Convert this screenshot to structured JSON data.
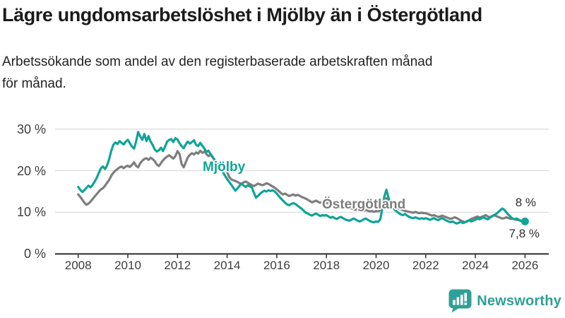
{
  "header": {
    "title": "Lägre ungdomsarbetslöshet i Mjölby än i Östergötland",
    "subtitle_lines": [
      "Arbetssökande som andel av den registerbaserade arbetskraften månad",
      "för månad."
    ]
  },
  "chart_data": {
    "type": "line",
    "title": "Lägre ungdomsarbetslöshet i Mjölby än i Östergötland",
    "subtitle": "Arbetssökande som andel av den registerbaserade arbetskraften månad för månad.",
    "x_unit": "month",
    "x_start": 2008,
    "x_end": 2026,
    "points_per_year": 12,
    "x_ticks": [
      "2008",
      "2010",
      "2012",
      "2014",
      "2016",
      "2018",
      "2020",
      "2022",
      "2024",
      "2026"
    ],
    "y_ticks": [
      {
        "value": 0,
        "label": "0 %"
      },
      {
        "value": 10,
        "label": "10 %"
      },
      {
        "value": 20,
        "label": "20 %"
      },
      {
        "value": 30,
        "label": "30 %"
      }
    ],
    "ylim": [
      0,
      31
    ],
    "grid": "horizontal",
    "legend": "inline-labels",
    "series": [
      {
        "id": "mjolby",
        "name": "Mjölby",
        "color": "#0fa497",
        "end_label": "7,8 %",
        "end_value": 7.8,
        "end_dot": true,
        "values": [
          16.1,
          15.4,
          14.9,
          15.3,
          15.9,
          16.4,
          16.0,
          16.6,
          17.4,
          18.3,
          19.5,
          20.6,
          21.0,
          20.4,
          21.3,
          22.8,
          24.8,
          26.2,
          26.8,
          26.4,
          27.1,
          26.7,
          26.3,
          27.0,
          27.4,
          26.6,
          25.8,
          25.3,
          27.0,
          29.3,
          28.2,
          27.4,
          28.8,
          27.1,
          28.3,
          27.0,
          26.2,
          25.1,
          24.6,
          24.9,
          25.5,
          24.7,
          25.8,
          27.0,
          27.4,
          27.6,
          26.9,
          27.8,
          27.5,
          26.6,
          25.9,
          25.4,
          26.3,
          27.0,
          26.5,
          26.9,
          27.3,
          26.2,
          25.9,
          26.7,
          26.0,
          25.3,
          24.5,
          24.8,
          24.0,
          23.3,
          22.6,
          21.9,
          21.2,
          20.4,
          19.6,
          18.8,
          18.0,
          17.3,
          16.6,
          15.9,
          15.2,
          15.7,
          16.4,
          16.9,
          16.4,
          16.1,
          16.5,
          16.2,
          15.9,
          14.6,
          13.5,
          14.0,
          14.5,
          14.9,
          15.2,
          15.0,
          15.3,
          15.1,
          15.3,
          15.0,
          14.5,
          13.9,
          13.3,
          12.8,
          12.3,
          11.9,
          11.7,
          12.0,
          12.2,
          12.0,
          11.6,
          11.2,
          10.9,
          10.4,
          9.9,
          9.7,
          9.4,
          9.2,
          9.5,
          9.7,
          9.4,
          9.1,
          9.3,
          9.2,
          9.3,
          9.0,
          8.7,
          8.9,
          8.6,
          8.4,
          8.7,
          8.9,
          8.6,
          8.3,
          8.1,
          8.0,
          8.2,
          8.5,
          8.3,
          8.0,
          7.8,
          8.0,
          8.3,
          8.5,
          8.2,
          7.9,
          7.7,
          7.6,
          7.8,
          7.7,
          8.3,
          10.8,
          13.8,
          15.4,
          13.5,
          12.3,
          11.3,
          10.6,
          10.2,
          9.8,
          9.5,
          9.3,
          9.6,
          9.2,
          8.9,
          8.7,
          8.6,
          8.8,
          8.6,
          8.4,
          8.6,
          8.4,
          8.6,
          8.4,
          8.2,
          8.4,
          8.6,
          8.3,
          8.1,
          8.4,
          8.6,
          8.3,
          8.0,
          7.8,
          7.6,
          7.8,
          7.5,
          7.3,
          7.5,
          7.7,
          7.4,
          7.6,
          7.9,
          8.1,
          7.8,
          8.0,
          8.2,
          8.5,
          8.3,
          8.6,
          8.8,
          8.5,
          8.3,
          8.7,
          9.0,
          9.3,
          9.6,
          10.0,
          10.5,
          10.9,
          10.6,
          10.0,
          9.4,
          8.9,
          8.5,
          8.3,
          8.5,
          8.2,
          7.9,
          7.8,
          7.8
        ]
      },
      {
        "id": "ostergotland",
        "name": "Östergötland",
        "color": "#7d7d7d",
        "end_label": "8 %",
        "end_value": 8.0,
        "end_dot": false,
        "values": [
          14.3,
          13.7,
          13.0,
          12.3,
          11.8,
          12.1,
          12.6,
          13.2,
          13.8,
          14.4,
          15.0,
          15.5,
          15.8,
          16.4,
          17.1,
          17.8,
          18.8,
          19.5,
          20.0,
          20.4,
          20.8,
          21.0,
          20.6,
          21.0,
          21.2,
          20.9,
          21.4,
          22.0,
          21.2,
          20.8,
          21.8,
          22.4,
          22.8,
          23.0,
          22.6,
          23.1,
          22.8,
          22.3,
          21.5,
          21.1,
          21.8,
          22.5,
          23.0,
          23.4,
          23.7,
          23.3,
          22.9,
          23.5,
          24.7,
          24.0,
          21.6,
          20.8,
          22.0,
          23.2,
          23.8,
          24.2,
          23.9,
          24.4,
          24.1,
          24.8,
          24.3,
          24.6,
          24.0,
          23.5,
          23.8,
          23.2,
          22.5,
          21.9,
          21.7,
          21.0,
          20.5,
          21.2,
          19.8,
          18.5,
          17.9,
          17.7,
          17.5,
          17.3,
          17.0,
          16.9,
          17.2,
          17.4,
          17.1,
          16.8,
          16.5,
          16.3,
          16.6,
          16.9,
          16.7,
          16.5,
          16.7,
          17.0,
          16.8,
          16.5,
          16.2,
          15.9,
          15.5,
          15.1,
          14.6,
          14.3,
          14.5,
          14.2,
          13.9,
          14.1,
          14.3,
          14.0,
          14.2,
          14.0,
          13.7,
          13.5,
          13.3,
          13.0,
          12.7,
          12.4,
          12.6,
          12.8,
          12.5,
          12.3,
          12.5,
          12.4,
          12.3,
          12.1,
          11.9,
          11.7,
          11.5,
          11.3,
          11.1,
          11.3,
          11.5,
          11.2,
          11.0,
          10.9,
          11.0,
          10.8,
          10.6,
          10.7,
          10.5,
          10.3,
          10.4,
          10.6,
          10.4,
          10.2,
          10.3,
          10.1,
          10.3,
          10.2,
          10.5,
          11.4,
          12.6,
          13.4,
          12.9,
          12.4,
          12.0,
          11.6,
          11.2,
          10.9,
          10.7,
          10.5,
          10.4,
          10.2,
          10.1,
          10.0,
          9.9,
          10.1,
          9.9,
          9.8,
          9.9,
          9.8,
          9.8,
          9.6,
          9.4,
          9.2,
          9.3,
          9.1,
          8.9,
          9.0,
          9.2,
          9.0,
          8.8,
          8.6,
          8.4,
          8.6,
          8.8,
          8.6,
          8.3,
          8.0,
          7.8,
          7.6,
          7.8,
          8.1,
          8.4,
          8.6,
          8.8,
          9.0,
          8.7,
          8.9,
          9.1,
          9.3,
          9.0,
          8.8,
          9.1,
          9.3,
          9.1,
          8.9,
          8.7,
          8.5,
          8.6,
          8.8,
          8.6,
          8.4,
          8.5,
          8.3,
          8.2,
          8.1,
          8.0,
          8.0,
          8.0
        ]
      }
    ],
    "colors": {
      "accent_teal": "#0fa497",
      "neutral_gray": "#7d7d7d",
      "axis": "#383838",
      "gridline": "#dcdcdc"
    }
  },
  "footer": {
    "brand": "Newsworthy"
  }
}
